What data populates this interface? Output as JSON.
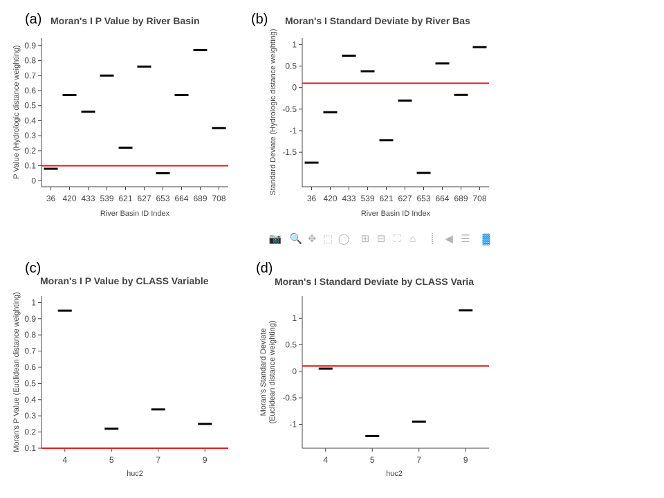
{
  "chart_data": [
    {
      "type": "scatter",
      "marker": "horizontal-dash",
      "panel_label": "(a)",
      "title": "Moran's I P Value by River Basin",
      "xlabel": "River Basin ID Index",
      "ylabel": "P Value (Hydrologic distance weighting)",
      "categories": [
        "36",
        "420",
        "433",
        "539",
        "621",
        "627",
        "653",
        "664",
        "689",
        "708"
      ],
      "values": [
        0.08,
        0.57,
        0.46,
        0.7,
        0.22,
        0.76,
        0.05,
        0.57,
        0.87,
        0.35
      ],
      "yticks": [
        0,
        0.1,
        0.2,
        0.3,
        0.4,
        0.5,
        0.6,
        0.7,
        0.8,
        0.9
      ],
      "ylim": [
        -0.04,
        0.95
      ],
      "reference_line": 0.1,
      "reference_color": "#e02020",
      "grid": false
    },
    {
      "type": "scatter",
      "marker": "horizontal-dash",
      "panel_label": "(b)",
      "title": "Moran's I Standard Deviate by River Bas",
      "xlabel": "River Basin ID Index",
      "ylabel": "Standard Deviate (Hydrologic distance weighting)",
      "categories": [
        "36",
        "420",
        "433",
        "539",
        "621",
        "627",
        "653",
        "664",
        "689",
        "708"
      ],
      "values": [
        -1.74,
        -0.57,
        0.74,
        0.38,
        -1.22,
        -0.3,
        -1.98,
        0.56,
        -0.17,
        0.94
      ],
      "yticks": [
        -1.5,
        -1,
        -0.5,
        0,
        0.5,
        1
      ],
      "ylim": [
        -2.3,
        1.15
      ],
      "reference_line": 0.1,
      "reference_color": "#e02020",
      "grid": false
    },
    {
      "type": "scatter",
      "marker": "horizontal-dash",
      "panel_label": "(c)",
      "title": "Moran's I P Value by CLASS Variable",
      "xlabel": "huc2",
      "ylabel": "Moran's P Value (Euclidean distance weighting)",
      "categories": [
        "4",
        "5",
        "7",
        "9"
      ],
      "values": [
        0.95,
        0.22,
        0.34,
        0.25
      ],
      "yticks": [
        0.1,
        0.2,
        0.3,
        0.4,
        0.5,
        0.6,
        0.7,
        0.8,
        0.9,
        1
      ],
      "ylim": [
        0.1,
        1.04
      ],
      "reference_line": 0.1,
      "reference_color": "#e02020",
      "grid": false
    },
    {
      "type": "scatter",
      "marker": "horizontal-dash",
      "panel_label": "(d)",
      "title": "Moran's I Standard Deviate by CLASS Varia",
      "xlabel": "huc2",
      "ylabel_lines": [
        "Moran's Standard Deviate",
        "(Euclidean distance weighting)"
      ],
      "categories": [
        "4",
        "5",
        "7",
        "9"
      ],
      "values": [
        0.05,
        -1.22,
        -0.95,
        1.15
      ],
      "yticks": [
        -1,
        -0.5,
        0,
        0.5,
        1
      ],
      "ylim": [
        -1.45,
        1.42
      ],
      "reference_line": 0.1,
      "reference_color": "#e02020",
      "grid": false
    }
  ],
  "modebar": {
    "icons": [
      {
        "name": "camera-icon",
        "glyph": "📷",
        "active": false
      },
      {
        "name": "zoom-icon",
        "glyph": "🔍",
        "active": true
      },
      {
        "name": "pan-icon",
        "glyph": "✥",
        "active": false
      },
      {
        "name": "box-select-icon",
        "glyph": "⬚",
        "active": false
      },
      {
        "name": "lasso-select-icon",
        "glyph": "◯",
        "active": false
      },
      {
        "name": "zoom-in-icon",
        "glyph": "⊞",
        "active": false
      },
      {
        "name": "zoom-out-icon",
        "glyph": "⊟",
        "active": false
      },
      {
        "name": "autoscale-icon",
        "glyph": "⛶",
        "active": false
      },
      {
        "name": "home-icon",
        "glyph": "⌂",
        "active": false
      },
      {
        "name": "spike-lines-icon",
        "glyph": "⸽",
        "active": false
      },
      {
        "name": "hover-closest-icon",
        "glyph": "◀",
        "active": false
      },
      {
        "name": "hover-compare-icon",
        "glyph": "☰",
        "active": false
      },
      {
        "name": "plotly-logo-icon",
        "glyph": "▓",
        "active": false,
        "brand": true
      }
    ]
  }
}
